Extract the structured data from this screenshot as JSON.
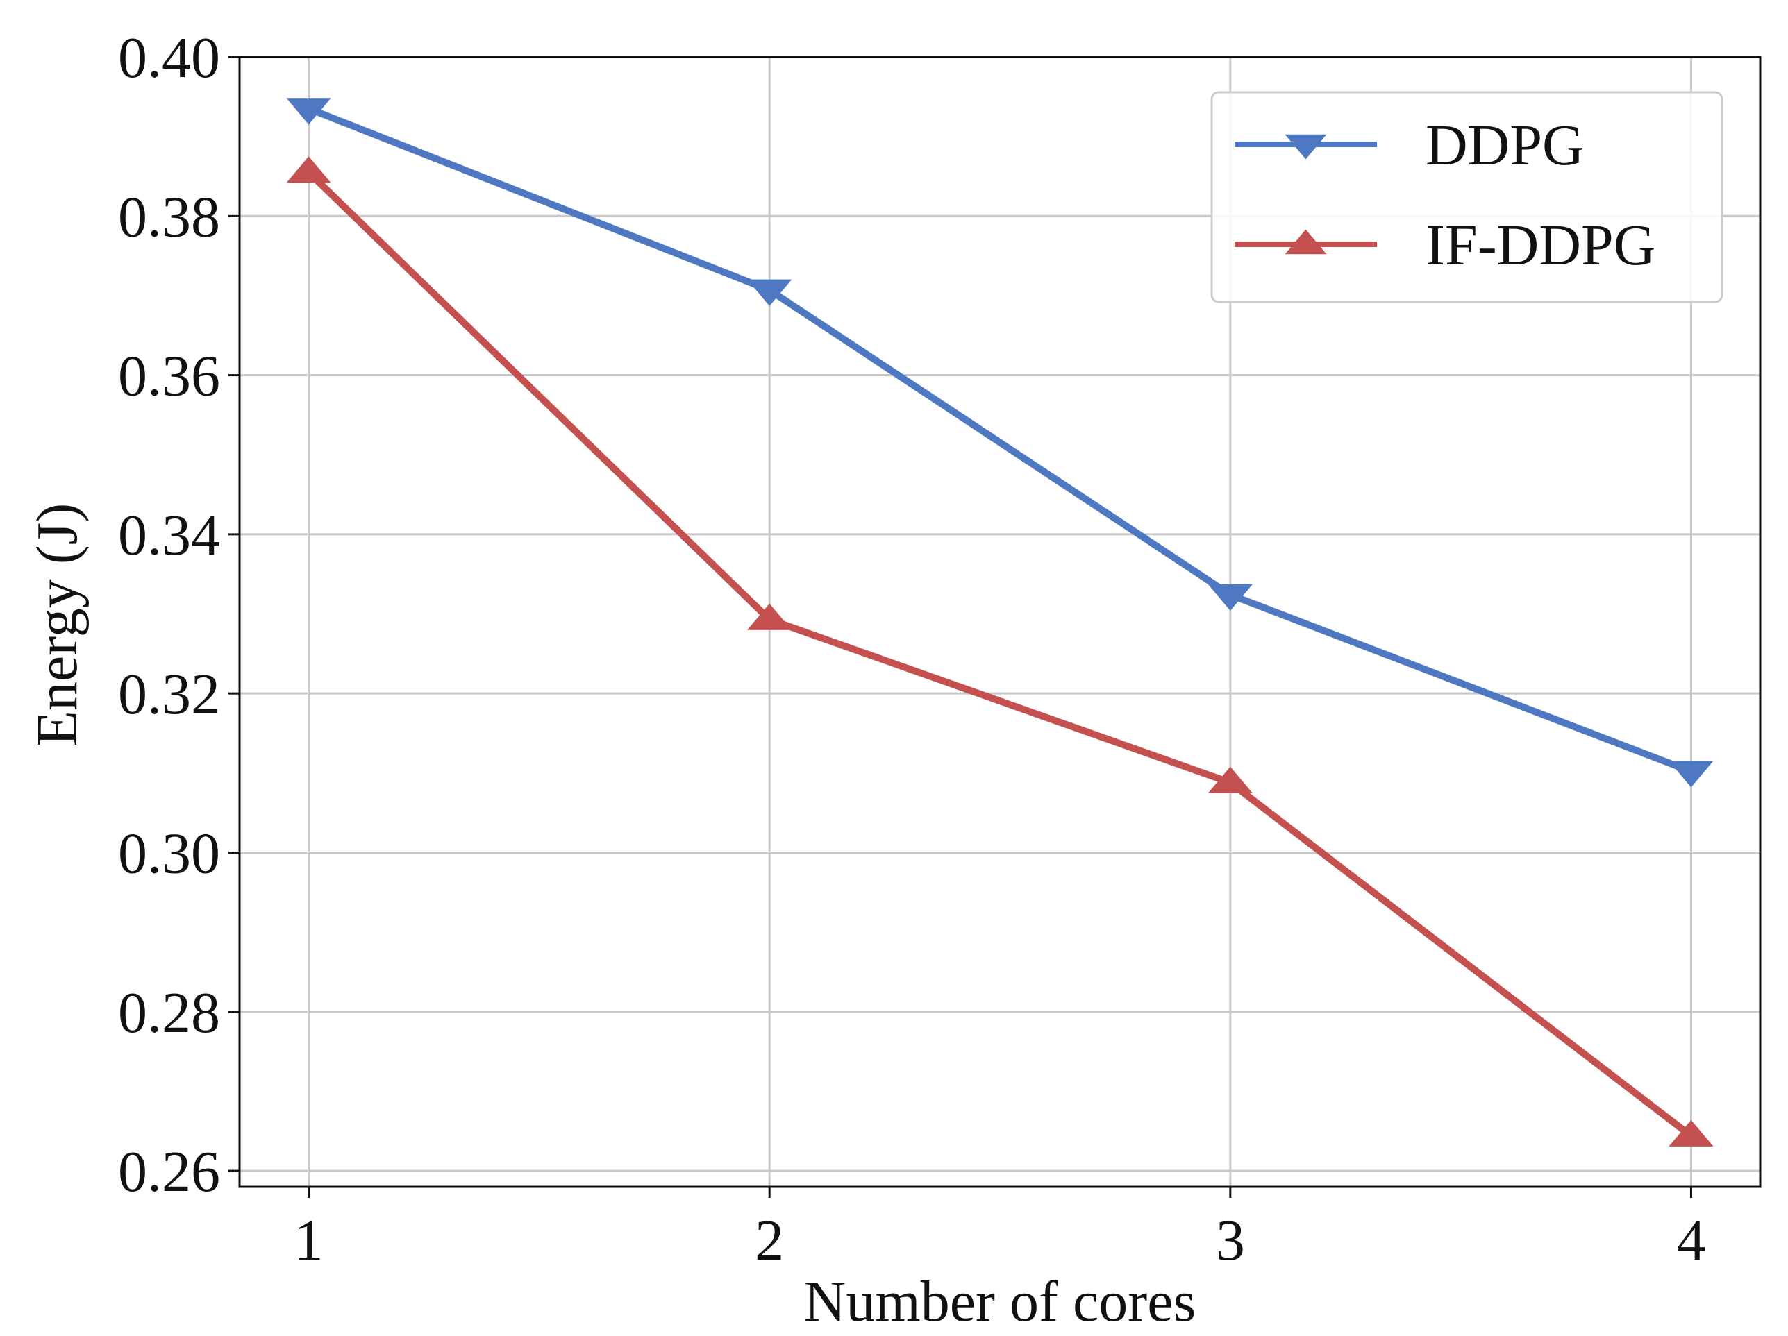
{
  "chart_data": {
    "type": "line",
    "title": "",
    "xlabel": "Number of cores",
    "ylabel": "Energy (J)",
    "x": [
      1,
      2,
      3,
      4
    ],
    "x_tick_labels": [
      "1",
      "2",
      "3",
      "4"
    ],
    "xlim": [
      0.85,
      4.15
    ],
    "ylim": [
      0.258,
      0.4
    ],
    "y_ticks": [
      0.26,
      0.28,
      0.3,
      0.32,
      0.34,
      0.36,
      0.38,
      0.4
    ],
    "y_tick_labels": [
      "0.26",
      "0.28",
      "0.30",
      "0.32",
      "0.34",
      "0.36",
      "0.38",
      "0.40"
    ],
    "grid": true,
    "legend_position": "top-right",
    "series": [
      {
        "name": "DDPG",
        "values": [
          0.3935,
          0.3707,
          0.3324,
          0.3102
        ],
        "color": "#4f78c2",
        "marker": "triangle-down"
      },
      {
        "name": "IF-DDPG",
        "values": [
          0.3855,
          0.3293,
          0.3088,
          0.2644
        ],
        "color": "#c4504f",
        "marker": "triangle-up"
      }
    ]
  }
}
